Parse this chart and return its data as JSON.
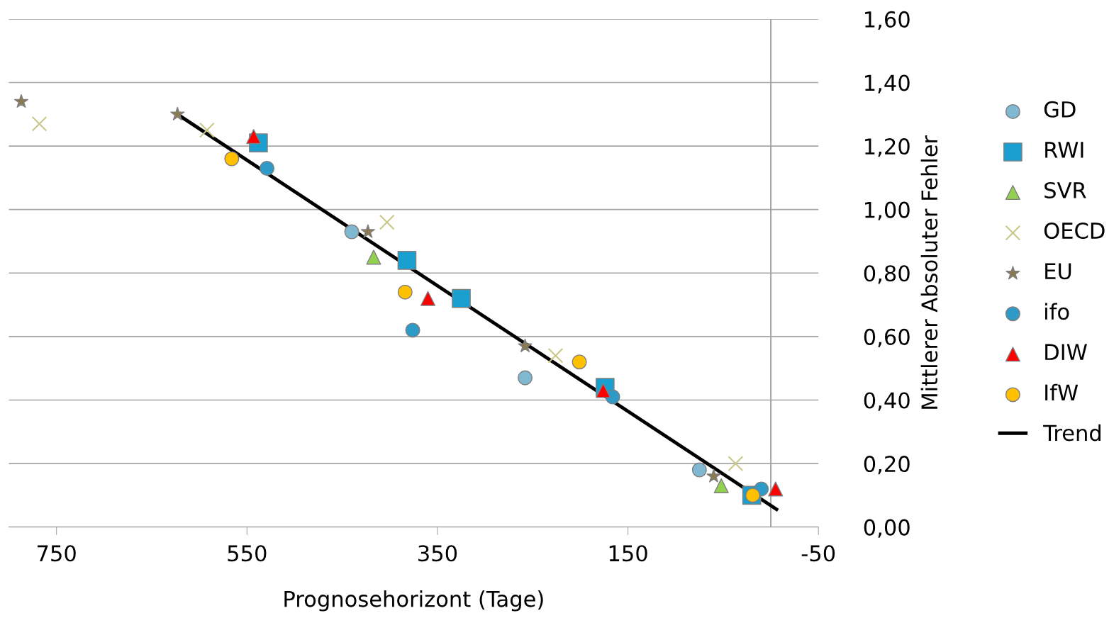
{
  "chart_data": {
    "type": "scatter",
    "xlabel": "Prognosehorizont (Tage)",
    "ylabel": "Mittlerer Absoluter Fehler",
    "xlim": [
      800,
      -50
    ],
    "xticks": [
      750,
      550,
      350,
      150,
      -50
    ],
    "ylim": [
      0,
      1.6
    ],
    "yticks": [
      {
        "value": 0,
        "label": "0,00"
      },
      {
        "value": 0.2,
        "label": "0,20"
      },
      {
        "value": 0.4,
        "label": "0,40"
      },
      {
        "value": 0.6,
        "label": "0,60"
      },
      {
        "value": 0.8,
        "label": "0,80"
      },
      {
        "value": 1.0,
        "label": "1,00"
      },
      {
        "value": 1.2,
        "label": "1,20"
      },
      {
        "value": 1.4,
        "label": "1,40"
      },
      {
        "value": 1.6,
        "label": "1,60"
      }
    ],
    "grid": "y",
    "legend": "right",
    "ref_lines": [
      {
        "axis": "x",
        "value": 0,
        "label": null,
        "color": "#a6a6a6"
      }
    ],
    "series": [
      {
        "name": "GD",
        "color": "#7fb8d0",
        "marker": "circle",
        "x": [
          440,
          258,
          75
        ],
        "values": [
          0.93,
          0.47,
          0.18
        ]
      },
      {
        "name": "RWI",
        "color": "#1aa0d0",
        "marker": "square",
        "x": [
          538,
          382,
          325,
          174,
          20
        ],
        "values": [
          1.21,
          0.84,
          0.72,
          0.44,
          0.1
        ]
      },
      {
        "name": "SVR",
        "color": "#92d050",
        "marker": "triangle",
        "x": [
          417,
          52
        ],
        "values": [
          0.85,
          0.13
        ]
      },
      {
        "name": "OECD",
        "color": "#c8c88a",
        "marker": "cross",
        "x": [
          768,
          592,
          403,
          226,
          37
        ],
        "values": [
          1.27,
          1.25,
          0.96,
          0.54,
          0.2
        ]
      },
      {
        "name": "EU",
        "color": "#8b7a50",
        "marker": "star",
        "x": [
          787,
          623,
          423,
          258,
          60
        ],
        "values": [
          1.34,
          1.3,
          0.93,
          0.57,
          0.16
        ]
      },
      {
        "name": "ifo",
        "color": "#2e9ac8",
        "marker": "circle",
        "x": [
          529,
          376,
          166,
          10
        ],
        "values": [
          1.13,
          0.62,
          0.41,
          0.12
        ]
      },
      {
        "name": "DIW",
        "color": "#ff0000",
        "marker": "triangle",
        "x": [
          543,
          360,
          176,
          -5
        ],
        "values": [
          1.23,
          0.72,
          0.43,
          0.12
        ]
      },
      {
        "name": "IfW",
        "color": "#ffc000",
        "marker": "circle",
        "x": [
          566,
          384,
          201,
          19
        ],
        "values": [
          1.16,
          0.74,
          0.52,
          0.1
        ]
      },
      {
        "name": "Trend",
        "type": "line",
        "color": "#000000",
        "marker": "none",
        "x": [
          623,
          -6
        ],
        "values": [
          1.3,
          0.056
        ]
      }
    ]
  }
}
